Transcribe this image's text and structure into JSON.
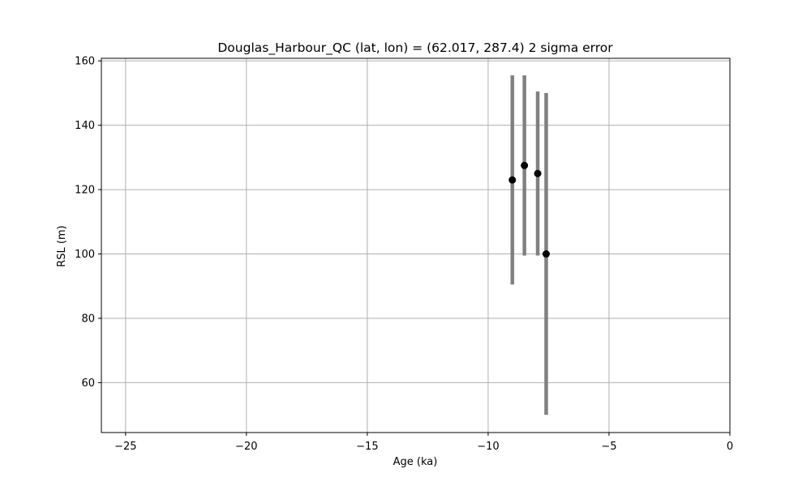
{
  "chart_data": {
    "type": "scatter",
    "title": "Douglas_Harbour_QC (lat, lon) = (62.017, 287.4)  2 sigma error",
    "xlabel": "Age (ka)",
    "ylabel": "RSL (m)",
    "xlim": [
      -26,
      0
    ],
    "ylim": [
      44.5,
      160.8
    ],
    "xticks": [
      -25,
      -20,
      -15,
      -10,
      -5,
      0
    ],
    "xtick_labels": [
      "−25",
      "−20",
      "−15",
      "−10",
      "−5",
      "0"
    ],
    "yticks": [
      60,
      80,
      100,
      120,
      140,
      160
    ],
    "ytick_labels": [
      "60",
      "80",
      "100",
      "120",
      "140",
      "160"
    ],
    "grid": true,
    "series": [
      {
        "marker_color": "#000000",
        "errorbar_color": "#808080",
        "points": [
          {
            "x": -9.0,
            "y": 123.0,
            "y_low": 90.5,
            "y_high": 155.5
          },
          {
            "x": -8.5,
            "y": 127.5,
            "y_low": 99.5,
            "y_high": 155.5
          },
          {
            "x": -7.95,
            "y": 125.0,
            "y_low": 99.5,
            "y_high": 150.5
          },
          {
            "x": -7.6,
            "y": 100.0,
            "y_low": 50.0,
            "y_high": 150.0
          }
        ]
      }
    ]
  }
}
